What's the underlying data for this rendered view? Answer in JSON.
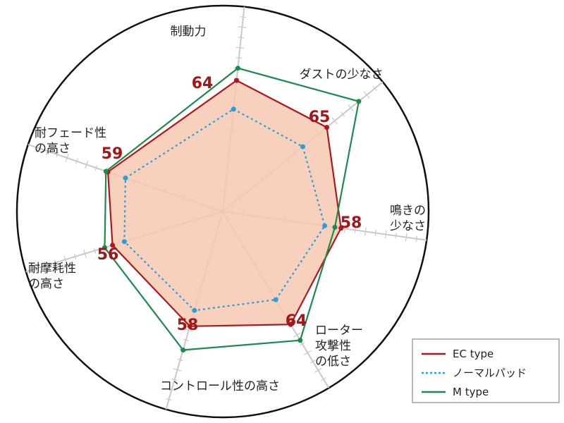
{
  "chart_data": {
    "type": "radar",
    "title": "",
    "axes": [
      [
        "制動力"
      ],
      [
        "ダストの少なさ"
      ],
      [
        "鳴きの",
        "少なさ"
      ],
      [
        "ローター",
        "攻撃性",
        "の低さ"
      ],
      [
        "コントロール性の高さ"
      ],
      [
        "耐摩耗性",
        "の高さ"
      ],
      [
        "耐フェード性",
        "の高さ"
      ]
    ],
    "max": 100,
    "series": [
      {
        "name": "EC type",
        "values": [
          64,
          65,
          58,
          64,
          58,
          56,
          59
        ],
        "color": "#b0161e",
        "fill": "#f6c9b2",
        "style": "solid"
      },
      {
        "name": "ノーマルパッド",
        "values": [
          50,
          50,
          50,
          50,
          50,
          50,
          50
        ],
        "color": "#2a9fd6",
        "style": "dotted"
      },
      {
        "name": "M type",
        "values": [
          70,
          85,
          55,
          73,
          70,
          60,
          60
        ],
        "color": "#1c8a4a",
        "style": "solid"
      }
    ],
    "value_labels": [
      "64",
      "65",
      "58",
      "64",
      "58",
      "56",
      "59"
    ],
    "legend_position": "bottom-right",
    "grid": true
  }
}
